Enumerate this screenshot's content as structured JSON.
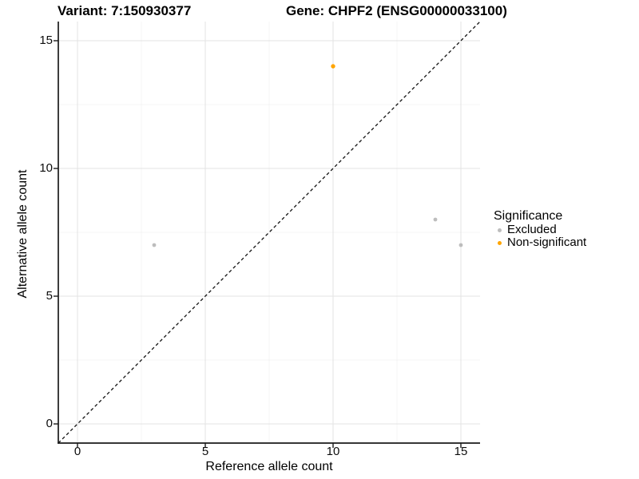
{
  "title": {
    "variant": "Variant: 7:150930377",
    "gene": "Gene: CHPF2 (ENSG00000033100)"
  },
  "axes": {
    "x": {
      "label": "Reference allele count"
    },
    "y": {
      "label": "Alternative allele count"
    }
  },
  "legend": {
    "title": "Significance",
    "items": [
      {
        "label": "Excluded",
        "color": "#BDBDBD"
      },
      {
        "label": "Non-significant",
        "color": "#FFA500"
      }
    ]
  },
  "chart_data": {
    "type": "scatter",
    "title": "Variant: 7:150930377   Gene: CHPF2 (ENSG00000033100)",
    "xlabel": "Reference allele count",
    "ylabel": "Alternative allele count",
    "xlim": [
      -0.75,
      15.75
    ],
    "ylim": [
      -0.75,
      15.75
    ],
    "x_ticks": [
      0,
      5,
      10,
      15
    ],
    "y_ticks": [
      0,
      5,
      10,
      15
    ],
    "x_minor_ticks": [
      2.5,
      7.5,
      12.5
    ],
    "y_minor_ticks": [
      2.5,
      7.5,
      12.5
    ],
    "grid": true,
    "legend_position": "right",
    "identity_line": {
      "equation": "y = x",
      "style": "dashed",
      "color": "#111111"
    },
    "series": [
      {
        "name": "Excluded",
        "color": "#BDBDBD",
        "point_radius": 2.4,
        "points": [
          {
            "x": 3,
            "y": 7
          },
          {
            "x": 14,
            "y": 8
          },
          {
            "x": 15,
            "y": 7
          }
        ]
      },
      {
        "name": "Non-significant",
        "color": "#FFA500",
        "point_radius": 2.7,
        "points": [
          {
            "x": 10,
            "y": 14
          }
        ]
      }
    ]
  },
  "theme": {
    "major_grid_color": "#E3E3E3",
    "minor_grid_color": "#F0F0F0",
    "axis_line_color": "#1a1a1a",
    "tick_color": "#1a1a1a",
    "background": "#ffffff"
  }
}
